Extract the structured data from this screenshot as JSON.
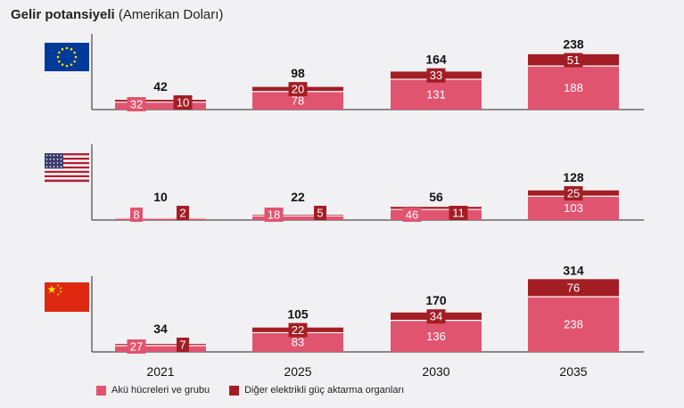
{
  "title": {
    "bold": "Gelir potansiyeli",
    "rest": "(Amerikan Doları)"
  },
  "colors": {
    "cells": "#e05470",
    "other": "#a31e24",
    "background": "#f1f1f3"
  },
  "chart_data": {
    "type": "bar",
    "stacked": true,
    "categories": [
      "2021",
      "2025",
      "2030",
      "2035"
    ],
    "panels": [
      {
        "region": "eu-flag",
        "totals": [
          "42",
          "98",
          "164",
          "238"
        ],
        "series": [
          {
            "name": "Akü hücreleri ve grubu",
            "values": [
              32,
              78,
              131,
              188
            ]
          },
          {
            "name": "Diğer elektrikli güç aktarma organları",
            "values": [
              10,
              20,
              33,
              51
            ]
          }
        ]
      },
      {
        "region": "us-flag",
        "totals": [
          "10",
          "22",
          "56",
          "128"
        ],
        "series": [
          {
            "name": "Akü hücreleri ve grubu",
            "values": [
              8,
              18,
              46,
              103
            ]
          },
          {
            "name": "Diğer elektrikli güç aktarma organları",
            "values": [
              2,
              5,
              11,
              25
            ]
          }
        ]
      },
      {
        "region": "china-flag",
        "totals": [
          "34",
          "105",
          "170",
          "314"
        ],
        "series": [
          {
            "name": "Akü hücreleri ve grubu",
            "values": [
              27,
              83,
              136,
              238
            ]
          },
          {
            "name": "Diğer elektrikli güç aktarma organları",
            "values": [
              7,
              22,
              34,
              76
            ]
          }
        ]
      }
    ],
    "legend": [
      "Akü hücreleri ve grubu",
      "Diğer elektrikli güç aktarma organları"
    ],
    "legend_position": "bottom-left",
    "grid": false
  }
}
